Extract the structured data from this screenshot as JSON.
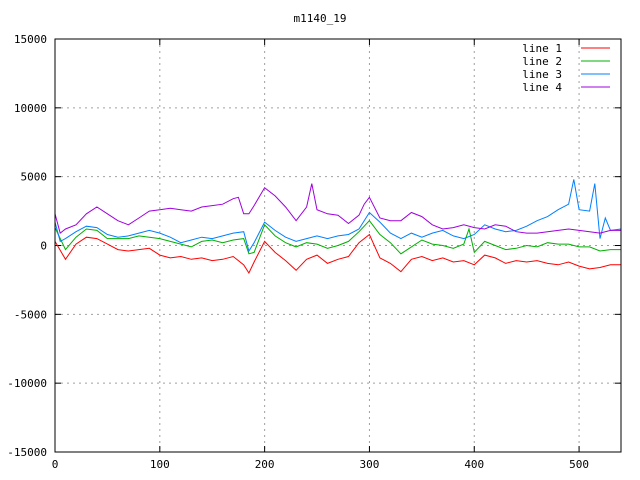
{
  "chart_data": {
    "type": "line",
    "title": "m1140_19",
    "xlabel": "",
    "ylabel": "",
    "xlim": [
      0,
      540
    ],
    "ylim": [
      -15000,
      15000
    ],
    "xticks": [
      "0",
      "100",
      "200",
      "300",
      "400",
      "500"
    ],
    "yticks": [
      "-15000",
      "-10000",
      "-5000",
      "0",
      "5000",
      "10000",
      "15000"
    ],
    "grid": true,
    "legend_position": "top-right",
    "series": [
      {
        "name": "line 1",
        "color": "#ff0000",
        "x": [
          0,
          10,
          20,
          30,
          40,
          50,
          60,
          70,
          80,
          90,
          100,
          110,
          120,
          130,
          140,
          150,
          160,
          170,
          180,
          185,
          190,
          200,
          210,
          220,
          230,
          240,
          250,
          260,
          270,
          280,
          290,
          300,
          310,
          320,
          330,
          340,
          350,
          360,
          370,
          380,
          390,
          400,
          410,
          420,
          430,
          440,
          450,
          460,
          470,
          480,
          490,
          500,
          510,
          520,
          530,
          540
        ],
        "y": [
          300,
          -1000,
          100,
          600,
          500,
          100,
          -300,
          -400,
          -300,
          -200,
          -700,
          -900,
          -800,
          -1000,
          -900,
          -1100,
          -1000,
          -800,
          -1400,
          -2000,
          -1200,
          300,
          -500,
          -1100,
          -1800,
          -1000,
          -700,
          -1300,
          -1000,
          -800,
          200,
          800,
          -900,
          -1300,
          -1900,
          -1000,
          -800,
          -1100,
          -900,
          -1200,
          -1100,
          -1400,
          -700,
          -900,
          -1300,
          -1100,
          -1200,
          -1100,
          -1300,
          -1400,
          -1200,
          -1500,
          -1700,
          -1600,
          -1400,
          -1400
        ]
      },
      {
        "name": "line 2",
        "color": "#00b000",
        "x": [
          0,
          10,
          20,
          30,
          40,
          50,
          60,
          70,
          80,
          90,
          100,
          110,
          120,
          130,
          140,
          150,
          160,
          170,
          180,
          185,
          190,
          200,
          210,
          220,
          230,
          240,
          250,
          260,
          270,
          280,
          290,
          300,
          310,
          320,
          330,
          340,
          350,
          360,
          370,
          380,
          390,
          395,
          400,
          410,
          420,
          430,
          440,
          450,
          460,
          470,
          480,
          490,
          500,
          510,
          520,
          530,
          540
        ],
        "y": [
          1300,
          -300,
          600,
          1200,
          1100,
          500,
          500,
          500,
          700,
          600,
          500,
          300,
          100,
          -100,
          300,
          400,
          200,
          400,
          500,
          -600,
          -500,
          1500,
          700,
          200,
          -100,
          200,
          100,
          -200,
          0,
          300,
          1000,
          1800,
          800,
          200,
          -600,
          -100,
          400,
          100,
          0,
          -200,
          100,
          1200,
          -500,
          300,
          0,
          -300,
          -200,
          0,
          -100,
          200,
          100,
          100,
          -100,
          -100,
          -400,
          -300,
          -300
        ]
      },
      {
        "name": "line 3",
        "color": "#0080ff",
        "x": [
          0,
          5,
          10,
          20,
          30,
          40,
          50,
          60,
          70,
          80,
          90,
          100,
          110,
          120,
          130,
          140,
          150,
          160,
          170,
          180,
          185,
          190,
          200,
          210,
          220,
          230,
          240,
          250,
          260,
          270,
          280,
          290,
          300,
          310,
          320,
          330,
          340,
          350,
          360,
          370,
          380,
          390,
          400,
          410,
          420,
          430,
          440,
          450,
          460,
          470,
          480,
          490,
          495,
          500,
          510,
          515,
          520,
          525,
          530,
          540
        ],
        "y": [
          1700,
          300,
          500,
          1000,
          1400,
          1300,
          800,
          600,
          700,
          900,
          1100,
          900,
          600,
          200,
          400,
          600,
          500,
          700,
          900,
          1000,
          -400,
          200,
          1700,
          1100,
          600,
          300,
          500,
          700,
          500,
          700,
          800,
          1200,
          2400,
          1700,
          900,
          500,
          900,
          600,
          900,
          1100,
          700,
          500,
          800,
          1500,
          1200,
          1000,
          1100,
          1400,
          1800,
          2100,
          2600,
          3000,
          4800,
          2600,
          2500,
          4500,
          500,
          2000,
          1100,
          1200
        ]
      },
      {
        "name": "line 4",
        "color": "#a000e0",
        "x": [
          0,
          5,
          10,
          20,
          30,
          40,
          50,
          60,
          70,
          80,
          90,
          100,
          110,
          120,
          130,
          140,
          150,
          160,
          170,
          175,
          180,
          185,
          190,
          200,
          210,
          220,
          230,
          240,
          245,
          250,
          260,
          270,
          280,
          290,
          295,
          300,
          310,
          320,
          330,
          340,
          350,
          360,
          370,
          380,
          390,
          400,
          410,
          420,
          430,
          440,
          450,
          460,
          470,
          480,
          490,
          500,
          510,
          520,
          530,
          540
        ],
        "y": [
          2300,
          900,
          1200,
          1500,
          2300,
          2800,
          2300,
          1800,
          1500,
          2000,
          2500,
          2600,
          2700,
          2600,
          2500,
          2800,
          2900,
          3000,
          3400,
          3500,
          2300,
          2300,
          2900,
          4200,
          3600,
          2800,
          1800,
          2800,
          4500,
          2600,
          2300,
          2200,
          1600,
          2200,
          3000,
          3500,
          2000,
          1800,
          1800,
          2400,
          2100,
          1500,
          1200,
          1300,
          1500,
          1300,
          1200,
          1500,
          1400,
          1000,
          900,
          900,
          1000,
          1100,
          1200,
          1100,
          1000,
          900,
          1100,
          1100
        ]
      }
    ]
  }
}
